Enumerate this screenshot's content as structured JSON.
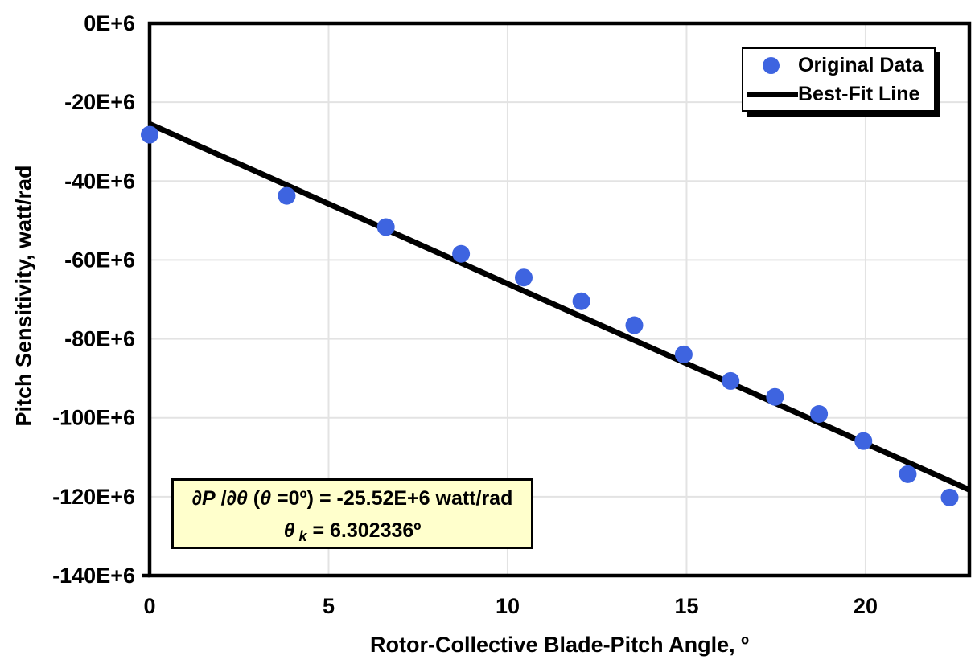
{
  "chart_data": {
    "type": "scatter",
    "title": "",
    "xlabel": "Rotor-Collective Blade-Pitch Angle, º",
    "ylabel": "Pitch Sensitivity, watt/rad",
    "xlim": [
      0,
      22.9
    ],
    "ylim_e6": [
      -140,
      0
    ],
    "x_tick_values": [
      0,
      5,
      10,
      15,
      20
    ],
    "x_tick_labels": [
      "0",
      "5",
      "10",
      "15",
      "20"
    ],
    "y_tick_values_e6": [
      0,
      -20,
      -40,
      -60,
      -80,
      -100,
      -120,
      -140
    ],
    "y_tick_labels": [
      "0E+6",
      "-20E+6",
      "-40E+6",
      "-60E+6",
      "-80E+6",
      "-100E+6",
      "-120E+6",
      "-140E+6"
    ],
    "grid": true,
    "legend_position": "top-right",
    "series": [
      {
        "name": "Original Data",
        "type": "scatter",
        "color": "#3E64E0",
        "x": [
          0.0,
          3.83,
          6.6,
          8.7,
          10.45,
          12.06,
          13.54,
          14.92,
          16.23,
          17.47,
          18.7,
          19.94,
          21.18,
          22.35
        ],
        "y_e6": [
          -28.24,
          -43.73,
          -51.66,
          -58.44,
          -64.44,
          -70.46,
          -76.53,
          -83.94,
          -90.67,
          -94.71,
          -99.04,
          -105.9,
          -114.3,
          -120.2
        ]
      },
      {
        "name": "Best-Fit Line",
        "type": "line",
        "color": "#000000",
        "fit": {
          "value_at_0_e6": -25.52,
          "theta_k_deg": 6.302336,
          "x_start": 0,
          "x_end": 22.9
        }
      }
    ],
    "annotation": {
      "bg_color": "#FFFFCC",
      "text_line1": "∂P /∂θ (θ =0º) = -25.52E+6 watt/rad",
      "text_line2": "θ k = 6.302336º",
      "segments_line1": [
        {
          "t": "∂P",
          "italic": true
        },
        {
          "t": " /",
          "italic": false
        },
        {
          "t": "∂θ",
          "italic": true
        },
        {
          "t": " (",
          "italic": false
        },
        {
          "t": "θ",
          "italic": true
        },
        {
          "t": " =0º) = -25.52E+6 watt/rad",
          "italic": false
        }
      ],
      "segments_line2": [
        {
          "t": "θ",
          "italic": true
        },
        {
          "t": " k",
          "italic": true,
          "sub": true
        },
        {
          "t": " = 6.302336º",
          "italic": false
        }
      ]
    },
    "colors": {
      "marker": "#3E64E0",
      "fit_line": "#000000",
      "gridline": "#E3E3E3",
      "frame": "#000000",
      "annotation_bg": "#FFFFCC"
    }
  }
}
